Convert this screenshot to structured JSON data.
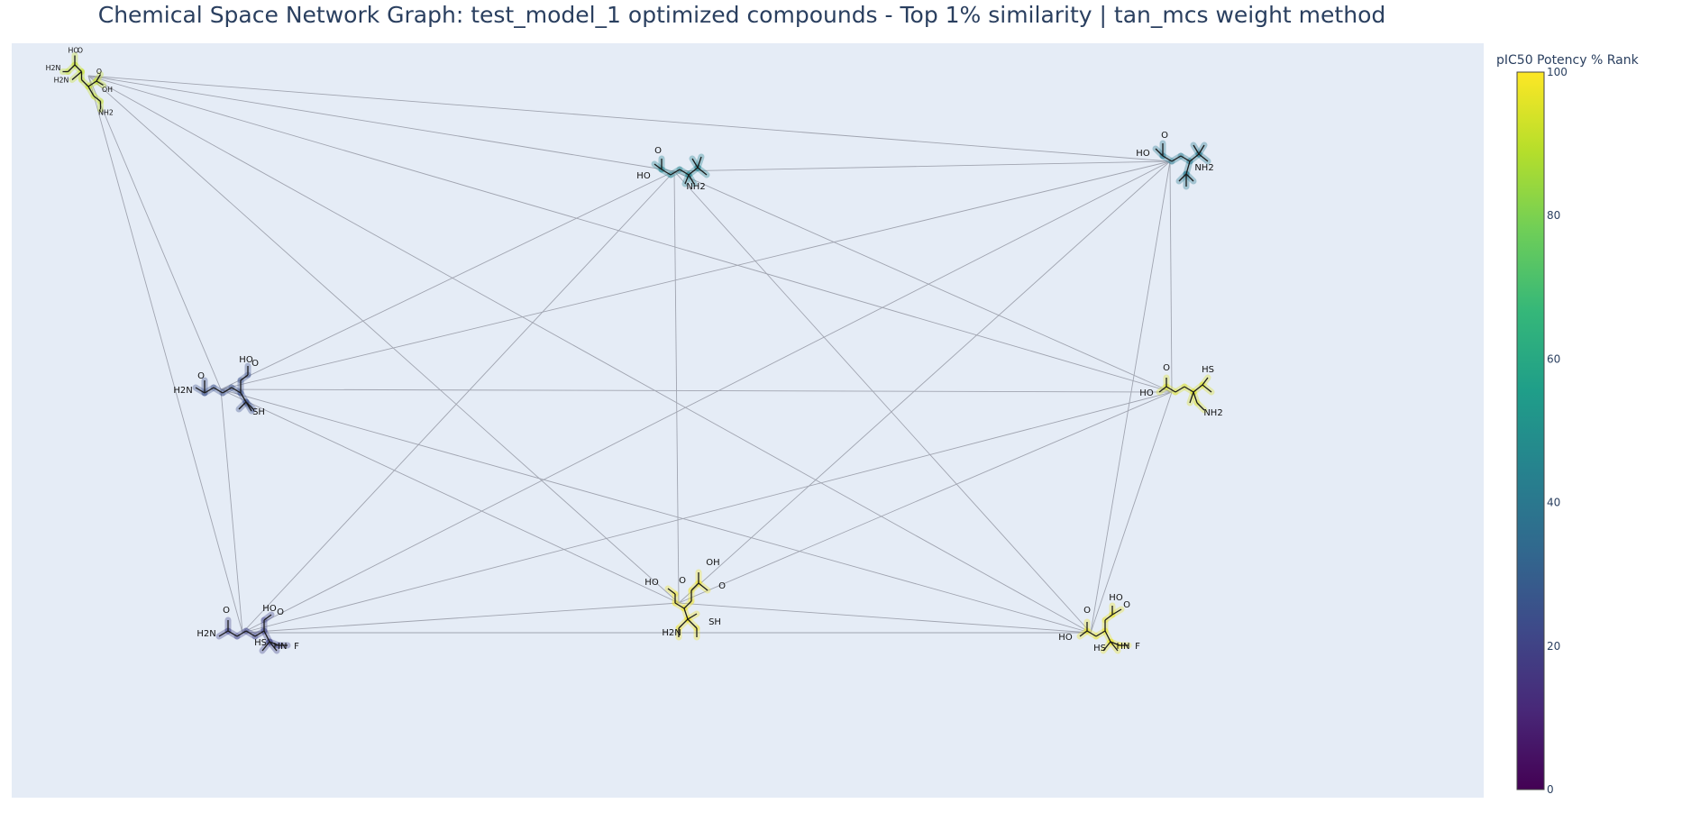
{
  "title": "Chemical Space Network Graph: test_model_1 optimized compounds - Top 1% similarity | tan_mcs weight method",
  "colors": {
    "background": "#ffffff",
    "plot_bg": "#e5ecf6",
    "edge": "#a0a4b0",
    "scale": [
      "#440154",
      "#482878",
      "#3e4989",
      "#31688e",
      "#26828e",
      "#1f9e89",
      "#35b779",
      "#6ece58",
      "#b5de2b",
      "#fde725"
    ]
  },
  "colorbar": {
    "title": "pIC50 Potency % Rank",
    "range": [
      0,
      100
    ],
    "ticks": [
      "0",
      "20",
      "40",
      "60",
      "80",
      "100"
    ]
  },
  "chart_data": {
    "type": "network",
    "title": "Chemical Space Network Graph: test_model_1 optimized compounds - Top 1% similarity | tan_mcs weight method",
    "nodes": [
      {
        "id": "n1",
        "rank": 92,
        "labels": [
          "HO",
          "O",
          "H2N",
          "H2N",
          "O",
          "OH",
          "NH2"
        ]
      },
      {
        "id": "n2",
        "rank": 45,
        "labels": [
          "O",
          "HO",
          "NH2"
        ]
      },
      {
        "id": "n3",
        "rank": 42,
        "labels": [
          "O",
          "HO",
          "NH2"
        ]
      },
      {
        "id": "n4",
        "rank": 25,
        "labels": [
          "HO",
          "O",
          "O",
          "H2N",
          "SH"
        ]
      },
      {
        "id": "n5",
        "rank": 95,
        "labels": [
          "HS",
          "O",
          "HO",
          "NH2"
        ]
      },
      {
        "id": "n6",
        "rank": 20,
        "labels": [
          "HO",
          "O",
          "O",
          "H2N",
          "HS",
          "HN",
          "F"
        ]
      },
      {
        "id": "n7",
        "rank": 98,
        "labels": [
          "OH",
          "HO",
          "O",
          "O",
          "H2N",
          "SH"
        ]
      },
      {
        "id": "n8",
        "rank": 97,
        "labels": [
          "HO",
          "O",
          "O",
          "HO",
          "HS",
          "HN",
          "F"
        ]
      }
    ],
    "edges": [
      [
        "n1",
        "n2"
      ],
      [
        "n1",
        "n3"
      ],
      [
        "n1",
        "n4"
      ],
      [
        "n1",
        "n5"
      ],
      [
        "n1",
        "n6"
      ],
      [
        "n1",
        "n7"
      ],
      [
        "n1",
        "n8"
      ],
      [
        "n2",
        "n3"
      ],
      [
        "n2",
        "n4"
      ],
      [
        "n2",
        "n6"
      ],
      [
        "n2",
        "n7"
      ],
      [
        "n2",
        "n5"
      ],
      [
        "n2",
        "n8"
      ],
      [
        "n3",
        "n4"
      ],
      [
        "n3",
        "n6"
      ],
      [
        "n3",
        "n7"
      ],
      [
        "n3",
        "n8"
      ],
      [
        "n3",
        "n5"
      ],
      [
        "n4",
        "n5"
      ],
      [
        "n4",
        "n6"
      ],
      [
        "n4",
        "n7"
      ],
      [
        "n4",
        "n8"
      ],
      [
        "n5",
        "n6"
      ],
      [
        "n5",
        "n7"
      ],
      [
        "n5",
        "n8"
      ],
      [
        "n6",
        "n7"
      ],
      [
        "n6",
        "n8"
      ],
      [
        "n7",
        "n8"
      ]
    ]
  }
}
